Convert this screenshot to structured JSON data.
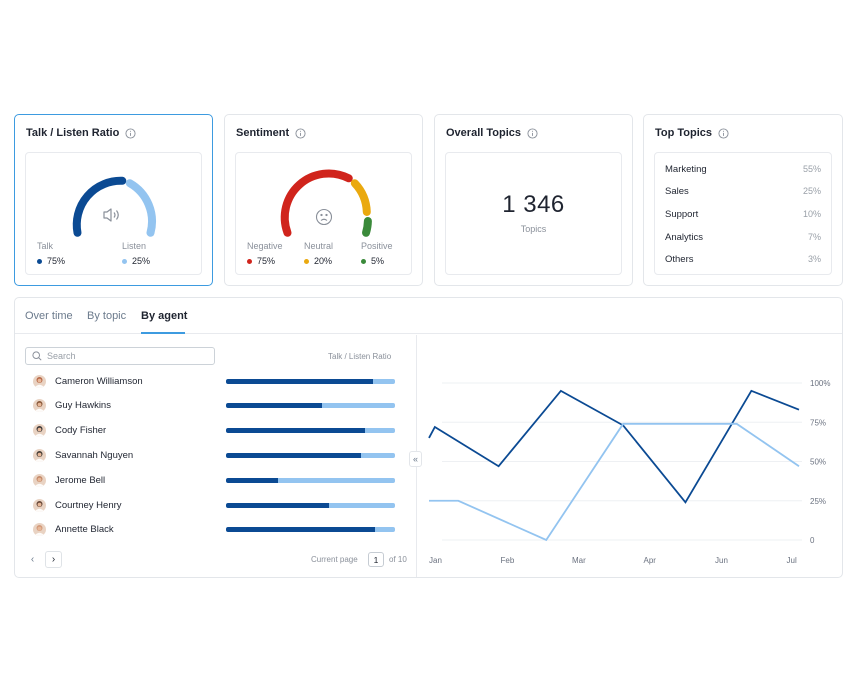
{
  "cards": {
    "talk_listen": {
      "title": "Talk / Listen Ratio",
      "talk_label": "Talk",
      "talk_value": "75%",
      "listen_label": "Listen",
      "listen_value": "25%",
      "talk_fraction": 0.75,
      "talk_color": "#0b4a93",
      "listen_color": "#93c4f0",
      "icon": "speaker-icon"
    },
    "sentiment": {
      "title": "Sentiment",
      "negative_label": "Negative",
      "negative_value": "75%",
      "neutral_label": "Neutral",
      "neutral_value": "20%",
      "positive_label": "Positive",
      "positive_value": "5%",
      "negative_color": "#d0241c",
      "neutral_color": "#eaa90f",
      "positive_color": "#3a8a3a",
      "icon": "sad-face-icon"
    },
    "overall_topics": {
      "title": "Overall Topics",
      "value": "1 346",
      "sub": "Topics"
    },
    "top_topics": {
      "title": "Top Topics",
      "items": [
        {
          "name": "Marketing",
          "pct": "55%"
        },
        {
          "name": "Sales",
          "pct": "25%"
        },
        {
          "name": "Support",
          "pct": "10%"
        },
        {
          "name": "Analytics",
          "pct": "7%"
        },
        {
          "name": "Others",
          "pct": "3%"
        }
      ]
    }
  },
  "tabs": [
    {
      "label": "Over time"
    },
    {
      "label": "By topic"
    },
    {
      "label": "By agent"
    }
  ],
  "active_tab": "By agent",
  "search": {
    "placeholder": "Search"
  },
  "column_header": "Talk / Listen Ratio",
  "agents": [
    {
      "name": "Cameron Williamson",
      "talk": 0.87
    },
    {
      "name": "Guy Hawkins",
      "talk": 0.57
    },
    {
      "name": "Cody Fisher",
      "talk": 0.82
    },
    {
      "name": "Savannah Nguyen",
      "talk": 0.8
    },
    {
      "name": "Jerome Bell",
      "talk": 0.31
    },
    {
      "name": "Courtney Henry",
      "talk": 0.61
    },
    {
      "name": "Annette Black",
      "talk": 0.88
    }
  ],
  "pagination": {
    "current_page_label": "Current page",
    "current_page": "1",
    "total_label": "of 10"
  },
  "chart_data": {
    "type": "line",
    "categories": [
      "Jan",
      "Feb",
      "Mar",
      "Apr",
      "Jun",
      "Jul"
    ],
    "x": [
      0,
      0.2,
      0.4,
      0.6,
      0.75,
      0.95,
      1.15,
      1.4,
      1.6,
      1.8,
      2.0,
      2.25,
      2.45,
      2.65,
      2.85,
      3.1,
      3.3,
      3.5,
      3.75,
      4.0,
      4.2,
      4.4,
      4.6,
      4.85,
      5.05
    ],
    "x_ticks": [
      "Jan",
      "Feb",
      "Mar",
      "Apr",
      "Jun",
      "Jul"
    ],
    "y_ticks": [
      "0",
      "25%",
      "50%",
      "75%",
      "100%"
    ],
    "ylim": [
      0,
      100
    ],
    "series": [
      {
        "color": "#0b4a93",
        "points": [
          [
            0,
            65
          ],
          [
            0.08,
            72
          ],
          [
            0.95,
            47
          ],
          [
            1.8,
            95
          ],
          [
            2.65,
            73
          ],
          [
            3.5,
            24
          ],
          [
            4.4,
            95
          ],
          [
            5.05,
            83
          ]
        ]
      },
      {
        "color": "#93c4f0",
        "points": [
          [
            0,
            25
          ],
          [
            0.4,
            25
          ],
          [
            1.6,
            0
          ],
          [
            2.65,
            74
          ],
          [
            4.2,
            74
          ],
          [
            5.05,
            47
          ]
        ]
      }
    ],
    "grid": true
  }
}
